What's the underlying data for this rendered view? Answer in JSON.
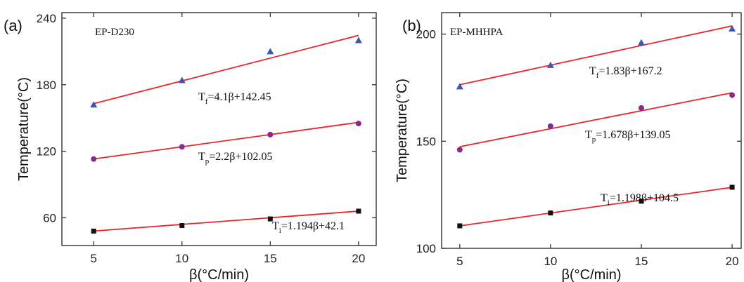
{
  "chart_data": [
    {
      "type": "scatter",
      "panel": "(a)",
      "title": "EP-D230",
      "xlabel": "β(°C/min)",
      "ylabel": "Temperature(°C)",
      "xlim": [
        3.2,
        21
      ],
      "ylim": [
        35,
        245
      ],
      "xticks": [
        5,
        10,
        15,
        20
      ],
      "yticks": [
        60,
        120,
        180,
        240
      ],
      "x": [
        5,
        10,
        15,
        20
      ],
      "series": [
        {
          "name": "Tf",
          "marker": "triangle",
          "color": "#3f57a8",
          "values": [
            162,
            184,
            210,
            220
          ],
          "fit": {
            "slope": 4.1,
            "intercept": 142.45
          },
          "label_sub": "f",
          "label_rest": "=4.1β+142.45"
        },
        {
          "name": "Tp",
          "marker": "circle",
          "color": "#8a2a8a",
          "values": [
            113,
            124,
            135,
            145
          ],
          "fit": {
            "slope": 2.2,
            "intercept": 102.05
          },
          "label_sub": "p",
          "label_rest": "=2.2β+102.05"
        },
        {
          "name": "Ti",
          "marker": "square",
          "color": "#111111",
          "values": [
            48,
            53,
            59,
            66
          ],
          "fit": {
            "slope": 1.194,
            "intercept": 42.1
          },
          "label_sub": "i",
          "label_rest": "=1.194β+42.1"
        }
      ],
      "fit_color": "#e8262a",
      "grid": false
    },
    {
      "type": "scatter",
      "panel": "(b)",
      "title": "EP-MHHPA",
      "xlabel": "β(°C/min)",
      "ylabel": "Temperature(°C)",
      "xlim": [
        4,
        20.5
      ],
      "ylim": [
        100,
        210
      ],
      "xticks": [
        5,
        10,
        15,
        20
      ],
      "yticks": [
        100,
        150,
        200
      ],
      "x": [
        5,
        10,
        15,
        20
      ],
      "series": [
        {
          "name": "Tf",
          "marker": "triangle",
          "color": "#3f57a8",
          "values": [
            175.5,
            185.5,
            196,
            202.5
          ],
          "fit": {
            "slope": 1.83,
            "intercept": 167.2
          },
          "label_sub": "f",
          "label_rest": "=1.83β+167.2"
        },
        {
          "name": "Tp",
          "marker": "circle",
          "color": "#8a2a8a",
          "values": [
            146,
            157,
            165.5,
            171.5
          ],
          "fit": {
            "slope": 1.678,
            "intercept": 139.05
          },
          "label_sub": "p",
          "label_rest": "=1.678β+139.05"
        },
        {
          "name": "Ti",
          "marker": "square",
          "color": "#111111",
          "values": [
            110.5,
            116.5,
            122,
            128.5
          ],
          "fit": {
            "slope": 1.198,
            "intercept": 104.5
          },
          "label_sub": "i",
          "label_rest": "=1.198β+104.5"
        }
      ],
      "fit_color": "#e8262a",
      "grid": false
    }
  ]
}
